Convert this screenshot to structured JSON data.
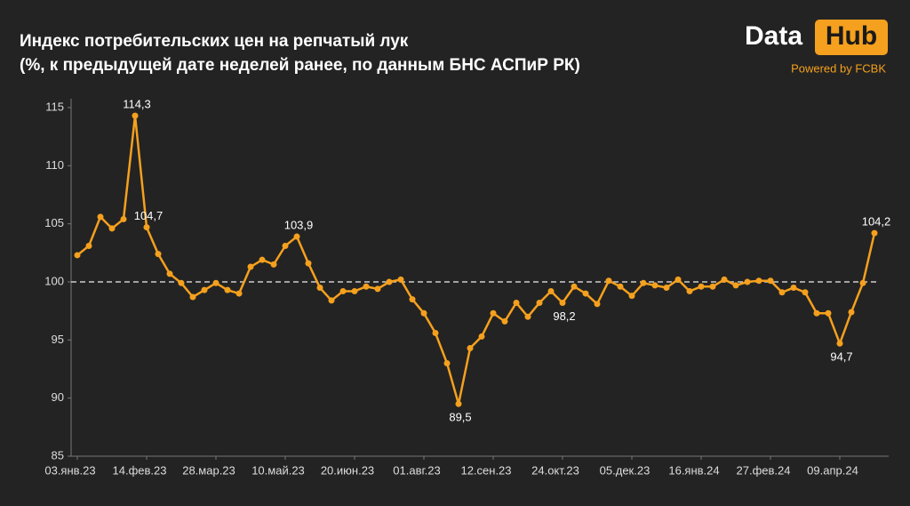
{
  "logo": {
    "left": "Data",
    "right": "Hub",
    "tagline": "Powered by FCBK"
  },
  "chart_data": {
    "type": "line",
    "title": "Индекс потребительских цен на репчатый лук",
    "subtitle": "(%, к предыдущей дате неделей ранее, по данным БНС АСПиР РК)",
    "categories": [
      "03.янв.23",
      null,
      null,
      null,
      null,
      null,
      "14.фев.23",
      null,
      null,
      null,
      null,
      null,
      "28.мар.23",
      null,
      null,
      null,
      null,
      null,
      "10.май.23",
      null,
      null,
      null,
      null,
      null,
      "20.июн.23",
      null,
      null,
      null,
      null,
      null,
      "01.авг.23",
      null,
      null,
      null,
      null,
      null,
      "12.сен.23",
      null,
      null,
      null,
      null,
      null,
      "24.окт.23",
      null,
      null,
      null,
      null,
      null,
      "05.дек.23",
      null,
      null,
      null,
      null,
      null,
      "16.янв.24",
      null,
      null,
      null,
      null,
      null,
      "27.фев.24",
      null,
      null,
      null,
      null,
      null,
      "09.апр.24",
      null,
      null,
      null
    ],
    "series": [
      {
        "name": null,
        "color": "#f5a01e",
        "values": [
          102.3,
          103.1,
          105.6,
          104.6,
          105.4,
          114.3,
          104.7,
          102.4,
          100.7,
          99.9,
          98.7,
          99.3,
          99.9,
          99.3,
          99.0,
          101.3,
          101.9,
          101.5,
          103.1,
          103.9,
          101.6,
          99.5,
          98.4,
          99.2,
          99.2,
          99.6,
          99.4,
          100.0,
          100.2,
          98.5,
          97.3,
          95.6,
          93.0,
          89.5,
          94.3,
          95.3,
          97.3,
          96.6,
          98.2,
          97.0,
          98.2,
          99.2,
          98.2,
          99.6,
          99.0,
          98.1,
          100.1,
          99.6,
          98.8,
          99.9,
          99.7,
          99.5,
          100.2,
          99.2,
          99.6,
          99.6,
          100.2,
          99.7,
          100.0,
          100.1,
          100.1,
          99.1,
          99.5,
          99.1,
          97.3,
          97.3,
          94.7,
          97.4,
          99.9,
          104.2
        ],
        "value_labels": [
          null,
          null,
          null,
          null,
          null,
          "114,3",
          "104,7",
          null,
          null,
          null,
          null,
          null,
          null,
          null,
          null,
          null,
          null,
          null,
          null,
          "103,9",
          null,
          null,
          null,
          null,
          null,
          null,
          null,
          null,
          null,
          null,
          null,
          null,
          null,
          "89,5",
          null,
          null,
          null,
          null,
          null,
          null,
          null,
          null,
          "98,2",
          null,
          null,
          null,
          null,
          null,
          null,
          null,
          null,
          null,
          null,
          null,
          null,
          null,
          null,
          null,
          null,
          null,
          null,
          null,
          null,
          null,
          null,
          null,
          "94,7",
          null,
          null,
          "104,2"
        ]
      }
    ],
    "ylim": [
      85,
      115
    ],
    "yticks": [
      85,
      90,
      95,
      100,
      105,
      110,
      115
    ],
    "reference_line": 100
  }
}
